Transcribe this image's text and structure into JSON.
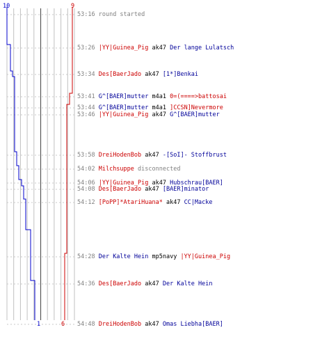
{
  "graph": {
    "blue_start": "10",
    "red_start": "9",
    "blue_end": "1",
    "red_end": "6",
    "blue_color": "#0000cc",
    "red_color": "#cc0000"
  },
  "events": [
    {
      "time": "53:16",
      "parts": [
        {
          "c": "g",
          "t": "round started"
        }
      ]
    },
    {
      "time": "53:26",
      "parts": [
        {
          "c": "r",
          "t": "|YY|Guinea_Pig"
        },
        {
          "c": "k",
          "t": " ak47 "
        },
        {
          "c": "b",
          "t": "Der lange Lulatsch"
        }
      ]
    },
    {
      "time": "53:34",
      "parts": [
        {
          "c": "r",
          "t": "Des[BaerJado"
        },
        {
          "c": "k",
          "t": " ak47 "
        },
        {
          "c": "b",
          "t": "[1*]Benkai"
        }
      ]
    },
    {
      "time": "53:41",
      "parts": [
        {
          "c": "b",
          "t": "G^[BAER]mutter"
        },
        {
          "c": "k",
          "t": " m4a1 "
        },
        {
          "c": "r",
          "t": "0=(====>battosai"
        }
      ]
    },
    {
      "time": "53:44",
      "parts": [
        {
          "c": "b",
          "t": "G^[BAER]mutter"
        },
        {
          "c": "k",
          "t": " m4a1 "
        },
        {
          "c": "r",
          "t": "]CCSN]Nevermore"
        }
      ]
    },
    {
      "time": "53:46",
      "parts": [
        {
          "c": "r",
          "t": "|YY|Guinea_Pig"
        },
        {
          "c": "k",
          "t": " ak47 "
        },
        {
          "c": "b",
          "t": "G^[BAER]mutter"
        }
      ]
    },
    {
      "time": "53:58",
      "parts": [
        {
          "c": "r",
          "t": "DreiHodenBob"
        },
        {
          "c": "k",
          "t": " ak47 "
        },
        {
          "c": "b",
          "t": "-[SoI]- Stoffbrust"
        }
      ]
    },
    {
      "time": "54:02",
      "parts": [
        {
          "c": "r",
          "t": "Milchsuppe"
        },
        {
          "c": "g",
          "t": " disconnected"
        }
      ]
    },
    {
      "time": "54:06",
      "parts": [
        {
          "c": "r",
          "t": "|YY|Guinea_Pig"
        },
        {
          "c": "k",
          "t": " ak47 "
        },
        {
          "c": "b",
          "t": "Hubschrau[BAER]"
        }
      ]
    },
    {
      "time": "54:08",
      "parts": [
        {
          "c": "r",
          "t": "Des[BaerJado"
        },
        {
          "c": "k",
          "t": " ak47 "
        },
        {
          "c": "b",
          "t": "[BAER]minator"
        }
      ]
    },
    {
      "time": "54:12",
      "parts": [
        {
          "c": "r",
          "t": "[PoPP]*AtariHuana*"
        },
        {
          "c": "k",
          "t": " ak47 "
        },
        {
          "c": "b",
          "t": "CC|Macke"
        }
      ]
    },
    {
      "time": "54:28",
      "parts": [
        {
          "c": "b",
          "t": "Der Kalte Hein"
        },
        {
          "c": "k",
          "t": " mp5navy "
        },
        {
          "c": "r",
          "t": "|YY|Guinea_Pig"
        }
      ]
    },
    {
      "time": "54:36",
      "parts": [
        {
          "c": "r",
          "t": "Des[BaerJado"
        },
        {
          "c": "k",
          "t": " ak47 "
        },
        {
          "c": "b",
          "t": "Der Kalte Hein"
        }
      ]
    },
    {
      "time": "54:48",
      "parts": [
        {
          "c": "r",
          "t": "DreiHodenBob"
        },
        {
          "c": "k",
          "t": " ak47 "
        },
        {
          "c": "b",
          "t": "Omas Liebha[BAER]"
        }
      ]
    }
  ]
}
